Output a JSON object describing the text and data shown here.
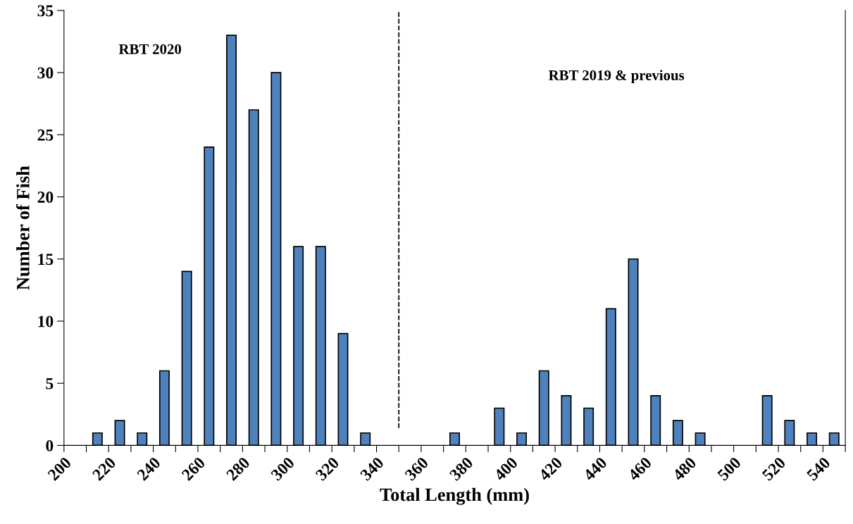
{
  "chart_data": {
    "type": "histogram",
    "xlabel": "Total Length (mm)",
    "ylabel": "Number of Fish",
    "bins": [
      200,
      210,
      220,
      230,
      240,
      250,
      260,
      270,
      280,
      290,
      300,
      310,
      320,
      330,
      340,
      350,
      360,
      370,
      380,
      390,
      400,
      410,
      420,
      430,
      440,
      450,
      460,
      470,
      480,
      490,
      500,
      510,
      520,
      530,
      540,
      550
    ],
    "values": [
      0,
      1,
      2,
      1,
      6,
      14,
      24,
      33,
      27,
      30,
      16,
      16,
      9,
      1,
      0,
      0,
      0,
      1,
      0,
      3,
      1,
      6,
      4,
      3,
      11,
      15,
      4,
      2,
      1,
      0,
      0,
      4,
      2,
      1,
      1
    ],
    "color": "#4f81bd",
    "xlim": [
      200,
      550
    ],
    "xticks": [
      200,
      {
        "value": 210,
        "label": null
      },
      220,
      {
        "value": 230,
        "label": null
      },
      240,
      {
        "value": 250,
        "label": null
      },
      260,
      {
        "value": 270,
        "label": null
      },
      280,
      {
        "value": 290,
        "label": null
      },
      300,
      {
        "value": 310,
        "label": null
      },
      320,
      {
        "value": 330,
        "label": null
      },
      340,
      {
        "value": 350,
        "label": null
      },
      360,
      {
        "value": 370,
        "label": null
      },
      380,
      {
        "value": 390,
        "label": null
      },
      400,
      {
        "value": 410,
        "label": null
      },
      420,
      {
        "value": 430,
        "label": null
      },
      440,
      {
        "value": 450,
        "label": null
      },
      460,
      {
        "value": 470,
        "label": null
      },
      480,
      {
        "value": 490,
        "label": null
      },
      500,
      {
        "value": 510,
        "label": null
      },
      520,
      {
        "value": 530,
        "label": null
      },
      540,
      {
        "value": 550,
        "label": null
      }
    ],
    "ylim": [
      0,
      35
    ],
    "yticks": [
      0,
      5,
      10,
      15,
      20,
      25,
      30,
      35
    ],
    "ref_lines": [
      {
        "axis": "x",
        "value": 350,
        "line_style": "dashed",
        "color": "#000000"
      }
    ],
    "annotations": [
      "RBT 2020",
      "RBT 2019 & previous"
    ],
    "grid": false,
    "legend": false
  }
}
